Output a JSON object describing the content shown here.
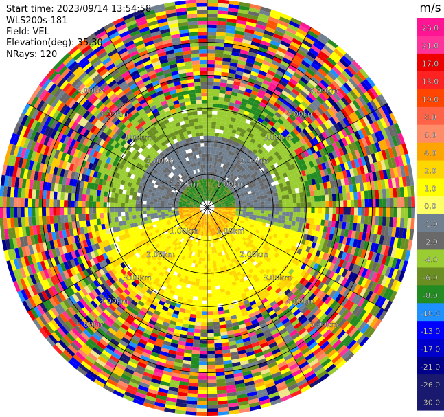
{
  "header": {
    "start_time": "Start time: 2023/09/14 13:54:58",
    "instrument": "WLS200s-181",
    "field": "Field: VEL",
    "elevation": "Elevation(deg): 35.30",
    "nrays": "NRays: 120"
  },
  "colorbar": {
    "unit": "m/s",
    "ticks": [
      "26.0",
      "21.0",
      "17.0",
      "13.0",
      "10.0",
      "8.0",
      "6.0",
      "4.0",
      "2.0",
      "1.0",
      "0.0",
      "-1.0",
      "-2.0",
      "-4.0",
      "-6.0",
      "-8.0",
      "-10.0",
      "-13.0",
      "-17.0",
      "-21.0",
      "-26.0",
      "-30.0"
    ],
    "colors": [
      "#ff1493",
      "#ff3399",
      "#ee0000",
      "#ff2222",
      "#ff5500",
      "#ff7744",
      "#ff8866",
      "#ffaa00",
      "#ffcc00",
      "#ffff00",
      "#f0e68c",
      "#708090",
      "#696969",
      "#9acd32",
      "#6b8e23",
      "#228b22",
      "#1e90ff",
      "#0000ff",
      "#0000cd",
      "#00008b",
      "#191970"
    ]
  },
  "chart_data": {
    "type": "heatmap",
    "projection": "polar-ppi",
    "field": "VEL",
    "units": "m/s",
    "nrays": 120,
    "range_ring_labels": [
      "1.00km",
      "2.00km",
      "3.00km",
      "4.00km",
      "5.00km"
    ],
    "range_rings_km": [
      1,
      2,
      3,
      4,
      5
    ],
    "max_range_km": 6.3,
    "value_range": [
      -30,
      26
    ],
    "grid": true,
    "spoke_angles_deg": [
      0,
      30,
      60,
      90,
      120,
      150,
      180,
      210,
      240,
      270,
      300,
      330
    ],
    "structure": {
      "near_field_0_1km": "mixed green (-2 to -6 m/s) north, orange/yellow (+4 to +6 m/s) south",
      "1_to_3km_north": "gray (0 to -1 m/s) and yellowgreen (-2 to -4 m/s)",
      "1_to_3km_south": "yellow (+1 to +4 m/s)",
      "beyond_3.5km": "noise (random colors across full scale)"
    }
  }
}
